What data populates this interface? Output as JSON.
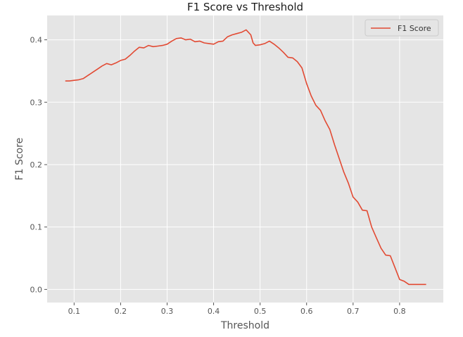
{
  "chart_data": {
    "type": "line",
    "title": "F1 Score vs Threshold",
    "xlabel": "Threshold",
    "ylabel": "F1 Score",
    "xlim": [
      0.042,
      0.894
    ],
    "ylim": [
      -0.021,
      0.439
    ],
    "xticks": [
      {
        "value": 0.1,
        "label": "0.1"
      },
      {
        "value": 0.2,
        "label": "0.2"
      },
      {
        "value": 0.3,
        "label": "0.3"
      },
      {
        "value": 0.4,
        "label": "0.4"
      },
      {
        "value": 0.5,
        "label": "0.5"
      },
      {
        "value": 0.6,
        "label": "0.6"
      },
      {
        "value": 0.7,
        "label": "0.7"
      },
      {
        "value": 0.8,
        "label": "0.8"
      }
    ],
    "yticks": [
      {
        "value": 0.0,
        "label": "0.0"
      },
      {
        "value": 0.1,
        "label": "0.1"
      },
      {
        "value": 0.2,
        "label": "0.2"
      },
      {
        "value": 0.3,
        "label": "0.3"
      },
      {
        "value": 0.4,
        "label": "0.4"
      }
    ],
    "grid": true,
    "legend_position": "top-right",
    "series": [
      {
        "name": "F1 Score",
        "color": "#e24a33",
        "x": [
          0.081,
          0.09,
          0.1,
          0.11,
          0.12,
          0.13,
          0.14,
          0.15,
          0.16,
          0.17,
          0.18,
          0.19,
          0.2,
          0.21,
          0.22,
          0.23,
          0.24,
          0.25,
          0.26,
          0.27,
          0.28,
          0.29,
          0.3,
          0.31,
          0.32,
          0.33,
          0.34,
          0.35,
          0.36,
          0.37,
          0.38,
          0.39,
          0.4,
          0.41,
          0.42,
          0.43,
          0.44,
          0.45,
          0.46,
          0.47,
          0.48,
          0.485,
          0.49,
          0.5,
          0.51,
          0.52,
          0.53,
          0.54,
          0.55,
          0.56,
          0.57,
          0.58,
          0.59,
          0.6,
          0.61,
          0.62,
          0.63,
          0.64,
          0.65,
          0.66,
          0.67,
          0.68,
          0.69,
          0.7,
          0.71,
          0.72,
          0.73,
          0.74,
          0.75,
          0.76,
          0.77,
          0.78,
          0.79,
          0.8,
          0.81,
          0.82,
          0.83,
          0.84,
          0.85,
          0.857
        ],
        "y": [
          0.334,
          0.334,
          0.335,
          0.336,
          0.338,
          0.343,
          0.348,
          0.353,
          0.358,
          0.362,
          0.36,
          0.363,
          0.367,
          0.369,
          0.375,
          0.382,
          0.388,
          0.387,
          0.391,
          0.389,
          0.39,
          0.391,
          0.393,
          0.398,
          0.402,
          0.403,
          0.4,
          0.401,
          0.397,
          0.398,
          0.395,
          0.394,
          0.393,
          0.397,
          0.398,
          0.405,
          0.408,
          0.41,
          0.412,
          0.416,
          0.408,
          0.395,
          0.391,
          0.392,
          0.394,
          0.398,
          0.393,
          0.387,
          0.38,
          0.372,
          0.371,
          0.365,
          0.355,
          0.33,
          0.31,
          0.295,
          0.287,
          0.27,
          0.256,
          0.232,
          0.21,
          0.188,
          0.17,
          0.148,
          0.14,
          0.127,
          0.126,
          0.1,
          0.083,
          0.066,
          0.055,
          0.054,
          0.035,
          0.016,
          0.013,
          0.008,
          0.008,
          0.008,
          0.008,
          0.008
        ]
      }
    ]
  }
}
